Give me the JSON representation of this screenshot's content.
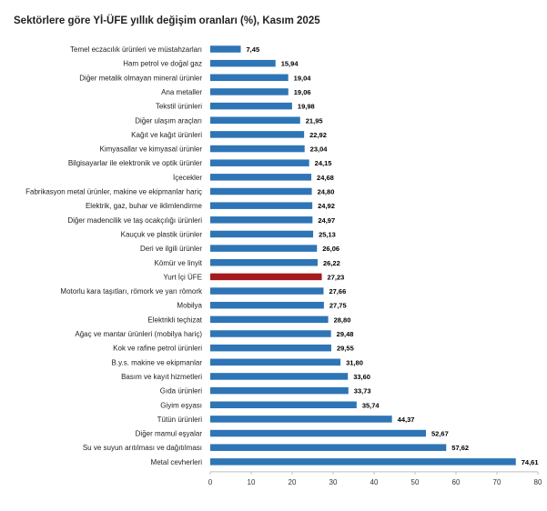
{
  "chart_data": {
    "type": "bar",
    "orientation": "horizontal",
    "title": "Sektörlere göre Yİ-ÜFE yıllık değişim oranları (%), Kasım 2025",
    "xlabel": "",
    "ylabel": "",
    "xlim": [
      0,
      80
    ],
    "xticks": [
      0,
      10,
      20,
      30,
      40,
      50,
      60,
      70,
      80
    ],
    "grid": false,
    "bar_color": "#2e75b6",
    "highlight_color": "#a31b1f",
    "highlight_category": "Yurt İçi ÜFE",
    "categories": [
      "Temel eczacılık ürünleri ve müstahzarları",
      "Ham petrol ve doğal gaz",
      "Diğer metalik olmayan mineral ürünler",
      "Ana metaller",
      "Tekstil ürünleri",
      "Diğer ulaşım araçları",
      "Kağıt ve kağıt ürünleri",
      "Kimyasallar ve kimyasal ürünler",
      "Bilgisayarlar ile elektronik ve optik ürünler",
      "İçecekler",
      "Fabrikasyon metal ürünler, makine ve ekipmanlar hariç",
      "Elektrik, gaz, buhar ve iklimlendirme",
      "Diğer madencilik ve taş ocakçılığı ürünleri",
      "Kauçuk ve plastik ürünler",
      "Deri ve ilgili ürünler",
      "Kömür ve linyit",
      "Yurt İçi ÜFE",
      "Motorlu kara taşıtları, römork ve yarı römork",
      "Mobilya",
      "Elektrikli teçhizat",
      "Ağaç ve mantar ürünleri (mobilya hariç)",
      "Kok ve rafine petrol ürünleri",
      "B.y.s. makine ve ekipmanlar",
      "Basım ve kayıt hizmetleri",
      "Gıda ürünleri",
      "Giyim eşyası",
      "Tütün ürünleri",
      "Diğer mamul eşyalar",
      "Su ve suyun arıtılması ve dağıtılması",
      "Metal cevherleri"
    ],
    "values": [
      7.45,
      15.94,
      19.04,
      19.06,
      19.98,
      21.95,
      22.92,
      23.04,
      24.15,
      24.68,
      24.8,
      24.92,
      24.97,
      25.13,
      26.06,
      26.22,
      27.23,
      27.66,
      27.75,
      28.8,
      29.48,
      29.55,
      31.8,
      33.6,
      33.73,
      35.74,
      44.37,
      52.67,
      57.62,
      74.61
    ],
    "value_labels": [
      "7,45",
      "15,94",
      "19,04",
      "19,06",
      "19,98",
      "21,95",
      "22,92",
      "23,04",
      "24,15",
      "24,68",
      "24,80",
      "24,92",
      "24,97",
      "25,13",
      "26,06",
      "26,22",
      "27,23",
      "27,66",
      "27,75",
      "28,80",
      "29,48",
      "29,55",
      "31,80",
      "33,60",
      "33,73",
      "35,74",
      "44,37",
      "52,67",
      "57,62",
      "74,61"
    ]
  }
}
